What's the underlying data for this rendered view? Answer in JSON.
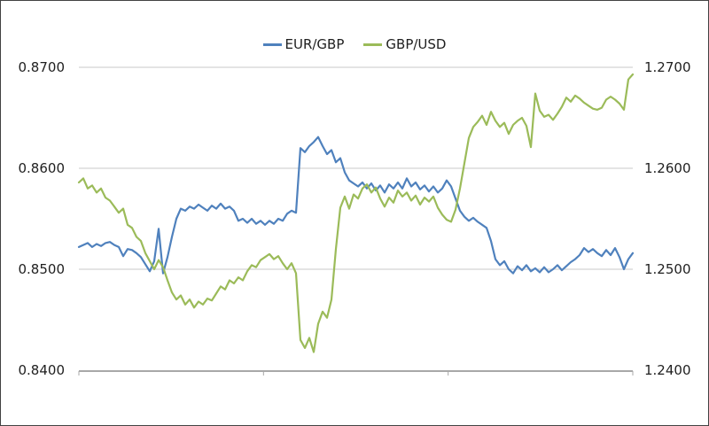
{
  "legend": {
    "items": [
      {
        "label": "EUR/GBP",
        "color": "#4F81BD"
      },
      {
        "label": "GBP/USD",
        "color": "#9BBB59"
      }
    ]
  },
  "chart_data": {
    "type": "line",
    "title": "",
    "legend_position": "top-center",
    "grid": true,
    "colors": {
      "gridline": "#C9C9C9",
      "axis_line": "#A8A8A8",
      "label_text": "#1f1f1f",
      "series_eur_gbp": "#4F81BD",
      "series_gbp_usd": "#9BBB59"
    },
    "y_axis_left": {
      "tick_labels": [
        "0.8700",
        "0.8600",
        "0.8500",
        "0.8400"
      ],
      "tick_values": [
        0.87,
        0.86,
        0.85,
        0.84
      ],
      "range": [
        0.84,
        0.87
      ]
    },
    "y_axis_right": {
      "tick_labels": [
        "1.2700",
        "1.2600",
        "1.2500",
        "1.2400"
      ],
      "tick_values": [
        1.27,
        1.26,
        1.25,
        1.24
      ],
      "range": [
        1.24,
        1.27
      ]
    },
    "x_axis": {
      "tick_labels": [],
      "tick_count": 4,
      "labels_visible": false
    },
    "series": [
      {
        "name": "EUR/GBP",
        "axis": "left",
        "color": "#4F81BD",
        "values": [
          0.8522,
          0.8524,
          0.8526,
          0.8522,
          0.8525,
          0.8523,
          0.8526,
          0.8527,
          0.8524,
          0.8522,
          0.8513,
          0.852,
          0.8519,
          0.8516,
          0.8512,
          0.8505,
          0.8498,
          0.8508,
          0.854,
          0.8496,
          0.8512,
          0.8532,
          0.855,
          0.856,
          0.8558,
          0.8562,
          0.856,
          0.8564,
          0.8561,
          0.8558,
          0.8563,
          0.856,
          0.8565,
          0.856,
          0.8562,
          0.8558,
          0.8548,
          0.855,
          0.8546,
          0.855,
          0.8545,
          0.8548,
          0.8544,
          0.8548,
          0.8545,
          0.855,
          0.8548,
          0.8555,
          0.8558,
          0.8556,
          0.862,
          0.8616,
          0.8622,
          0.8626,
          0.8631,
          0.8622,
          0.8614,
          0.8618,
          0.8606,
          0.861,
          0.8596,
          0.8588,
          0.8585,
          0.8582,
          0.8586,
          0.858,
          0.8585,
          0.8578,
          0.8583,
          0.8576,
          0.8584,
          0.858,
          0.8586,
          0.858,
          0.859,
          0.8582,
          0.8586,
          0.8579,
          0.8583,
          0.8577,
          0.8582,
          0.8576,
          0.858,
          0.8588,
          0.8582,
          0.857,
          0.8558,
          0.8552,
          0.8548,
          0.8551,
          0.8547,
          0.8544,
          0.8541,
          0.8528,
          0.851,
          0.8504,
          0.8508,
          0.85,
          0.8496,
          0.8503,
          0.8499,
          0.8504,
          0.8498,
          0.8501,
          0.8497,
          0.8502,
          0.8497,
          0.85,
          0.8504,
          0.8499,
          0.8503,
          0.8507,
          0.851,
          0.8514,
          0.8521,
          0.8517,
          0.852,
          0.8516,
          0.8513,
          0.8519,
          0.8514,
          0.8521,
          0.8512,
          0.85,
          0.851,
          0.8516
        ]
      },
      {
        "name": "GBP/USD",
        "axis": "right",
        "color": "#9BBB59",
        "values": [
          1.2586,
          1.259,
          1.258,
          1.2583,
          1.2576,
          1.258,
          1.2571,
          1.2568,
          1.2562,
          1.2556,
          1.256,
          1.2544,
          1.2541,
          1.2532,
          1.2528,
          1.2516,
          1.2508,
          1.25,
          1.2509,
          1.2502,
          1.2489,
          1.2477,
          1.247,
          1.2474,
          1.2465,
          1.247,
          1.2462,
          1.2468,
          1.2465,
          1.2471,
          1.2469,
          1.2476,
          1.2483,
          1.248,
          1.2489,
          1.2486,
          1.2492,
          1.2489,
          1.2498,
          1.2504,
          1.2502,
          1.2509,
          1.2512,
          1.2515,
          1.251,
          1.2513,
          1.2506,
          1.25,
          1.2506,
          1.2496,
          1.243,
          1.2422,
          1.2432,
          1.2418,
          1.2446,
          1.2458,
          1.2452,
          1.247,
          1.252,
          1.2561,
          1.2572,
          1.256,
          1.2574,
          1.257,
          1.258,
          1.2584,
          1.2576,
          1.2581,
          1.257,
          1.2562,
          1.2571,
          1.2566,
          1.2578,
          1.2572,
          1.2576,
          1.2568,
          1.2573,
          1.2564,
          1.2571,
          1.2567,
          1.2572,
          1.2561,
          1.2554,
          1.2549,
          1.2547,
          1.2559,
          1.258,
          1.2605,
          1.263,
          1.2641,
          1.2646,
          1.2652,
          1.2643,
          1.2656,
          1.2647,
          1.2641,
          1.2645,
          1.2634,
          1.2643,
          1.2647,
          1.265,
          1.2642,
          1.2621,
          1.2674,
          1.2657,
          1.2651,
          1.2653,
          1.2648,
          1.2654,
          1.2661,
          1.267,
          1.2666,
          1.2672,
          1.2669,
          1.2665,
          1.2662,
          1.2659,
          1.2658,
          1.266,
          1.2668,
          1.2671,
          1.2668,
          1.2664,
          1.2658,
          1.2688,
          1.2693
        ]
      }
    ]
  }
}
